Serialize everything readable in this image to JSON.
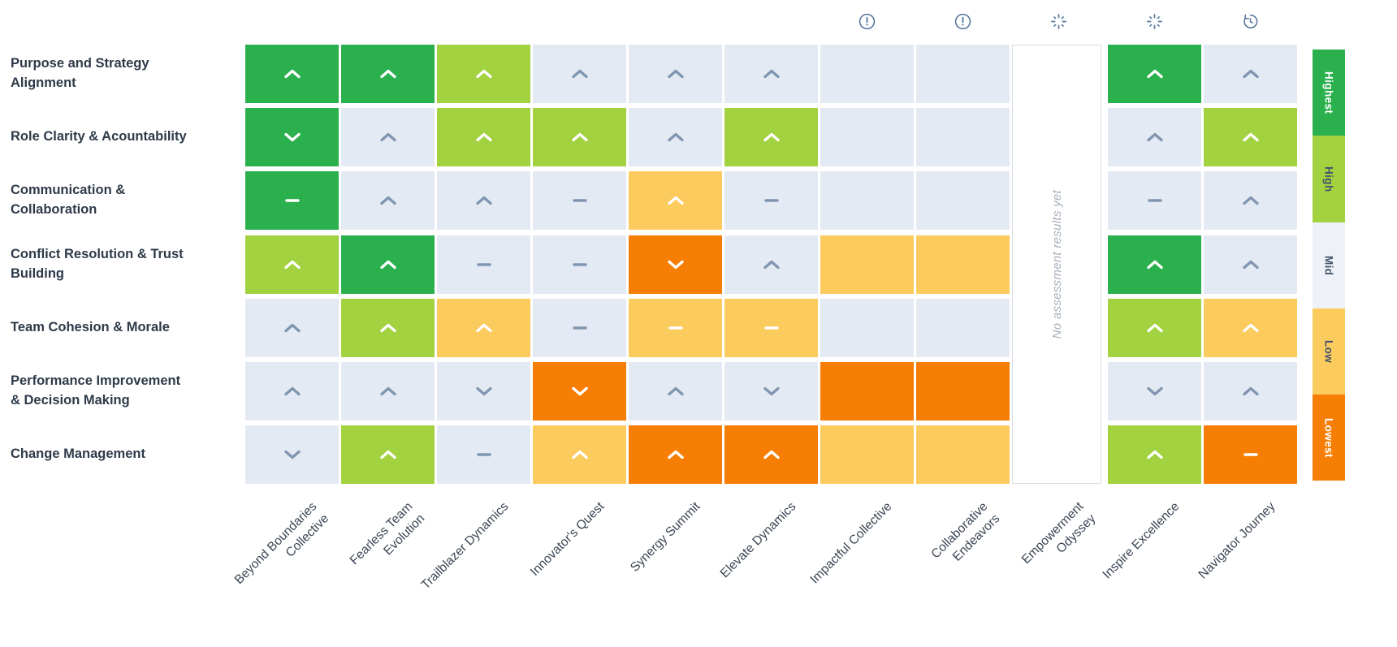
{
  "chart_data": {
    "type": "heatmap",
    "rows": [
      "Purpose and Strategy\nAlignment",
      "Role Clarity & Acountability",
      "Communication &\nCollaboration",
      "Conflict Resolution & Trust\nBuilding",
      "Team Cohesion & Morale",
      "Performance Improvement\n& Decision Making",
      "Change Management"
    ],
    "columns": [
      "Beyond Boundaries\nCollective",
      "Fearless Team\nEvolution",
      "Trailblazer Dynamics",
      "Innovator's Quest",
      "Synergy Summit",
      "Elevate Dynamics",
      "Impactful Collective",
      "Collaborative\nEndeavors",
      "Empowerment\nOdyssey",
      "Inspire Excellence",
      "Navigator Journey"
    ],
    "column_status_icons": [
      "none",
      "none",
      "none",
      "none",
      "none",
      "none",
      "alert",
      "alert",
      "spinner",
      "spinner",
      "history"
    ],
    "cells": [
      [
        "highest:up",
        "highest:up",
        "high:up",
        "mid:up",
        "mid:up",
        "mid:up",
        "mid:none",
        "mid:none",
        "empty",
        "highest:up",
        "mid:up"
      ],
      [
        "highest:down",
        "mid:up",
        "high:up",
        "high:up",
        "mid:up",
        "high:up",
        "mid:none",
        "mid:none",
        "empty",
        "mid:up",
        "high:up"
      ],
      [
        "highest:flat",
        "mid:up",
        "mid:up",
        "mid:flat",
        "low:up",
        "mid:flat",
        "mid:none",
        "mid:none",
        "empty",
        "mid:flat",
        "mid:up"
      ],
      [
        "high:up",
        "highest:up",
        "mid:flat",
        "mid:flat",
        "lowest:down",
        "mid:up",
        "low:none",
        "low:none",
        "empty",
        "highest:up",
        "mid:up"
      ],
      [
        "mid:up",
        "high:up",
        "low:up",
        "mid:flat",
        "low:flat",
        "low:flat",
        "mid:none",
        "mid:none",
        "empty",
        "high:up",
        "low:up"
      ],
      [
        "mid:up",
        "mid:up",
        "mid:down",
        "lowest:down",
        "mid:up",
        "mid:down",
        "lowest:none",
        "lowest:none",
        "empty",
        "mid:down",
        "mid:up"
      ],
      [
        "mid:down",
        "high:up",
        "mid:flat",
        "low:up",
        "lowest:up",
        "lowest:up",
        "low:none",
        "low:none",
        "empty",
        "high:up",
        "lowest:flat"
      ]
    ],
    "empty_column": {
      "column": "Empowerment\nOdyssey",
      "text": "No assessment results yet"
    },
    "legend": {
      "position": "right",
      "items": [
        {
          "label": "Highest",
          "level": "highest"
        },
        {
          "label": "High",
          "level": "high"
        },
        {
          "label": "Mid",
          "level": "mid"
        },
        {
          "label": "Low",
          "level": "low"
        },
        {
          "label": "Lowest",
          "level": "lowest"
        }
      ]
    }
  },
  "colors": {
    "highest": "#2bb04e",
    "high": "#a2d23f",
    "mid": "#e4eaf3",
    "low": "#fccb5e",
    "lowest": "#f67e04",
    "legend_mid": "#eef2f8",
    "chevron_on_mid": "#8096b0",
    "chevron_on_color": "#ffffff",
    "status_icon": "#54749b",
    "row_label_text": "#2e3a49",
    "column_label_text": "#3a4554",
    "legend_dark_text": "#42526b",
    "empty_text": "#a7afba",
    "empty_border": "#d8dde4",
    "background": "#ffffff"
  }
}
